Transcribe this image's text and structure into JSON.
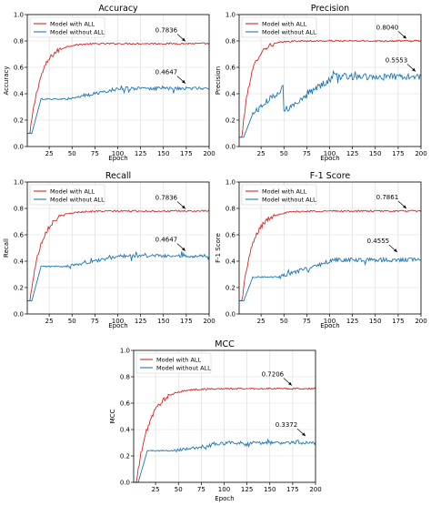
{
  "colors": {
    "with": "#d62728",
    "without": "#1f77b4",
    "grid": "#d9d9d9",
    "axis": "#000000"
  },
  "chart_data": [
    {
      "type": "line",
      "title": "Accuracy",
      "xlabel": "Epoch",
      "ylabel": "Accuracy",
      "xlim": [
        1,
        200
      ],
      "ylim": [
        0.0,
        1.0
      ],
      "xticks": [
        "25",
        "50",
        "75",
        "100",
        "125",
        "150",
        "175",
        "200"
      ],
      "yticks": [
        "0.0",
        "0.2",
        "0.4",
        "0.6",
        "0.8",
        "1.0"
      ],
      "grid": true,
      "legend": "upper left",
      "series": [
        {
          "name": "Model with ALL",
          "start": 0.1,
          "plateau": 0.78,
          "tau": 12,
          "noise": 0.006
        },
        {
          "name": "Model without ALL",
          "start": 0.1,
          "plateau": 0.44,
          "noise": 0.012
        }
      ],
      "annotations": [
        {
          "text": "0.7836",
          "x": 175,
          "y": 0.7836
        },
        {
          "text": "0.4647",
          "x": 175,
          "y": 0.4647
        }
      ]
    },
    {
      "type": "line",
      "title": "Precision",
      "xlabel": "Epoch",
      "ylabel": "Precision",
      "xlim": [
        1,
        200
      ],
      "ylim": [
        0.0,
        1.0
      ],
      "xticks": [
        "25",
        "50",
        "75",
        "100",
        "125",
        "150",
        "175",
        "200"
      ],
      "yticks": [
        "0.0",
        "0.2",
        "0.4",
        "0.6",
        "0.8",
        "1.0"
      ],
      "grid": true,
      "legend": "upper left",
      "series": [
        {
          "name": "Model with ALL",
          "start": 0.07,
          "plateau": 0.8,
          "tau": 10,
          "noise": 0.006
        },
        {
          "name": "Model without ALL",
          "start": 0.07,
          "plateau": 0.53,
          "noise": 0.025
        }
      ],
      "annotations": [
        {
          "text": "0.8040",
          "x": 185,
          "y": 0.804
        },
        {
          "text": "0.5553",
          "x": 195,
          "y": 0.5553
        }
      ]
    },
    {
      "type": "line",
      "title": "Recall",
      "xlabel": "Epoch",
      "ylabel": "Recall",
      "xlim": [
        1,
        200
      ],
      "ylim": [
        0.0,
        1.0
      ],
      "xticks": [
        "25",
        "50",
        "75",
        "100",
        "125",
        "150",
        "175",
        "200"
      ],
      "yticks": [
        "0.0",
        "0.2",
        "0.4",
        "0.6",
        "0.8",
        "1.0"
      ],
      "grid": true,
      "legend": "upper left",
      "series": [
        {
          "name": "Model with ALL",
          "start": 0.1,
          "plateau": 0.78,
          "tau": 12,
          "noise": 0.006
        },
        {
          "name": "Model without ALL",
          "start": 0.1,
          "plateau": 0.44,
          "noise": 0.012
        }
      ],
      "annotations": [
        {
          "text": "0.7836",
          "x": 175,
          "y": 0.7836
        },
        {
          "text": "0.4647",
          "x": 175,
          "y": 0.4647
        }
      ]
    },
    {
      "type": "line",
      "title": "F-1 Score",
      "xlabel": "Epoch",
      "ylabel": "F-1 Score",
      "xlim": [
        1,
        200
      ],
      "ylim": [
        0.0,
        1.0
      ],
      "xticks": [
        "25",
        "50",
        "75",
        "100",
        "125",
        "150",
        "175",
        "200"
      ],
      "yticks": [
        "0.0",
        "0.2",
        "0.4",
        "0.6",
        "0.8",
        "1.0"
      ],
      "grid": true,
      "legend": "upper left",
      "series": [
        {
          "name": "Model with ALL",
          "start": 0.1,
          "plateau": 0.78,
          "tau": 12,
          "noise": 0.006
        },
        {
          "name": "Model without ALL",
          "start": 0.1,
          "plateau": 0.41,
          "noise": 0.015
        }
      ],
      "annotations": [
        {
          "text": "0.7861",
          "x": 185,
          "y": 0.7861
        },
        {
          "text": "0.4555",
          "x": 175,
          "y": 0.4555
        }
      ]
    },
    {
      "type": "line",
      "title": "MCC",
      "xlabel": "Epoch",
      "ylabel": "MCC",
      "xlim": [
        1,
        200
      ],
      "ylim": [
        0.0,
        1.0
      ],
      "xticks": [
        "25",
        "50",
        "75",
        "100",
        "125",
        "150",
        "175",
        "200"
      ],
      "yticks": [
        "0.0",
        "0.2",
        "0.4",
        "0.6",
        "0.8",
        "1.0"
      ],
      "grid": true,
      "legend": "upper left",
      "series": [
        {
          "name": "Model with ALL",
          "start": 0.0,
          "plateau": 0.71,
          "tau": 14,
          "noise": 0.006
        },
        {
          "name": "Model without ALL",
          "start": 0.0,
          "plateau": 0.3,
          "noise": 0.012
        }
      ],
      "annotations": [
        {
          "text": "0.7206",
          "x": 175,
          "y": 0.7206
        },
        {
          "text": "0.3372",
          "x": 190,
          "y": 0.3372
        }
      ]
    }
  ]
}
